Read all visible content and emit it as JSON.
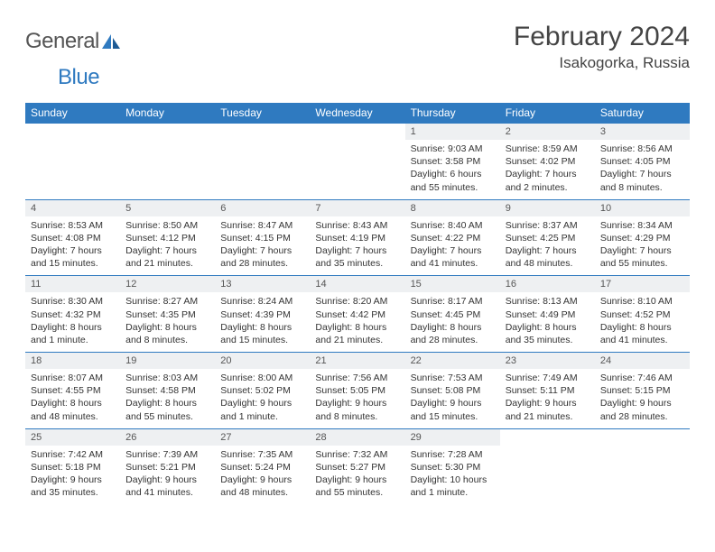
{
  "brand": {
    "name_a": "General",
    "name_b": "Blue"
  },
  "title": "February 2024",
  "location": "Isakogorka, Russia",
  "colors": {
    "accent": "#2f7ac0",
    "header_text": "#ffffff",
    "daynum_bg": "#eef0f2",
    "border": "#2f7ac0"
  },
  "fonts": {
    "title_pt": 30,
    "location_pt": 17,
    "weekday_pt": 12,
    "daynum_pt": 11,
    "body_pt": 10.5
  },
  "weekdays": [
    "Sunday",
    "Monday",
    "Tuesday",
    "Wednesday",
    "Thursday",
    "Friday",
    "Saturday"
  ],
  "grid": [
    [
      {
        "empty": true
      },
      {
        "empty": true
      },
      {
        "empty": true
      },
      {
        "empty": true
      },
      {
        "n": "1",
        "sunrise": "9:03 AM",
        "sunset": "3:58 PM",
        "daylight": "6 hours and 55 minutes."
      },
      {
        "n": "2",
        "sunrise": "8:59 AM",
        "sunset": "4:02 PM",
        "daylight": "7 hours and 2 minutes."
      },
      {
        "n": "3",
        "sunrise": "8:56 AM",
        "sunset": "4:05 PM",
        "daylight": "7 hours and 8 minutes."
      }
    ],
    [
      {
        "n": "4",
        "sunrise": "8:53 AM",
        "sunset": "4:08 PM",
        "daylight": "7 hours and 15 minutes."
      },
      {
        "n": "5",
        "sunrise": "8:50 AM",
        "sunset": "4:12 PM",
        "daylight": "7 hours and 21 minutes."
      },
      {
        "n": "6",
        "sunrise": "8:47 AM",
        "sunset": "4:15 PM",
        "daylight": "7 hours and 28 minutes."
      },
      {
        "n": "7",
        "sunrise": "8:43 AM",
        "sunset": "4:19 PM",
        "daylight": "7 hours and 35 minutes."
      },
      {
        "n": "8",
        "sunrise": "8:40 AM",
        "sunset": "4:22 PM",
        "daylight": "7 hours and 41 minutes."
      },
      {
        "n": "9",
        "sunrise": "8:37 AM",
        "sunset": "4:25 PM",
        "daylight": "7 hours and 48 minutes."
      },
      {
        "n": "10",
        "sunrise": "8:34 AM",
        "sunset": "4:29 PM",
        "daylight": "7 hours and 55 minutes."
      }
    ],
    [
      {
        "n": "11",
        "sunrise": "8:30 AM",
        "sunset": "4:32 PM",
        "daylight": "8 hours and 1 minute."
      },
      {
        "n": "12",
        "sunrise": "8:27 AM",
        "sunset": "4:35 PM",
        "daylight": "8 hours and 8 minutes."
      },
      {
        "n": "13",
        "sunrise": "8:24 AM",
        "sunset": "4:39 PM",
        "daylight": "8 hours and 15 minutes."
      },
      {
        "n": "14",
        "sunrise": "8:20 AM",
        "sunset": "4:42 PM",
        "daylight": "8 hours and 21 minutes."
      },
      {
        "n": "15",
        "sunrise": "8:17 AM",
        "sunset": "4:45 PM",
        "daylight": "8 hours and 28 minutes."
      },
      {
        "n": "16",
        "sunrise": "8:13 AM",
        "sunset": "4:49 PM",
        "daylight": "8 hours and 35 minutes."
      },
      {
        "n": "17",
        "sunrise": "8:10 AM",
        "sunset": "4:52 PM",
        "daylight": "8 hours and 41 minutes."
      }
    ],
    [
      {
        "n": "18",
        "sunrise": "8:07 AM",
        "sunset": "4:55 PM",
        "daylight": "8 hours and 48 minutes."
      },
      {
        "n": "19",
        "sunrise": "8:03 AM",
        "sunset": "4:58 PM",
        "daylight": "8 hours and 55 minutes."
      },
      {
        "n": "20",
        "sunrise": "8:00 AM",
        "sunset": "5:02 PM",
        "daylight": "9 hours and 1 minute."
      },
      {
        "n": "21",
        "sunrise": "7:56 AM",
        "sunset": "5:05 PM",
        "daylight": "9 hours and 8 minutes."
      },
      {
        "n": "22",
        "sunrise": "7:53 AM",
        "sunset": "5:08 PM",
        "daylight": "9 hours and 15 minutes."
      },
      {
        "n": "23",
        "sunrise": "7:49 AM",
        "sunset": "5:11 PM",
        "daylight": "9 hours and 21 minutes."
      },
      {
        "n": "24",
        "sunrise": "7:46 AM",
        "sunset": "5:15 PM",
        "daylight": "9 hours and 28 minutes."
      }
    ],
    [
      {
        "n": "25",
        "sunrise": "7:42 AM",
        "sunset": "5:18 PM",
        "daylight": "9 hours and 35 minutes."
      },
      {
        "n": "26",
        "sunrise": "7:39 AM",
        "sunset": "5:21 PM",
        "daylight": "9 hours and 41 minutes."
      },
      {
        "n": "27",
        "sunrise": "7:35 AM",
        "sunset": "5:24 PM",
        "daylight": "9 hours and 48 minutes."
      },
      {
        "n": "28",
        "sunrise": "7:32 AM",
        "sunset": "5:27 PM",
        "daylight": "9 hours and 55 minutes."
      },
      {
        "n": "29",
        "sunrise": "7:28 AM",
        "sunset": "5:30 PM",
        "daylight": "10 hours and 1 minute."
      },
      {
        "empty": true
      },
      {
        "empty": true
      }
    ]
  ],
  "labels": {
    "sunrise": "Sunrise: ",
    "sunset": "Sunset: ",
    "daylight": "Daylight: "
  }
}
